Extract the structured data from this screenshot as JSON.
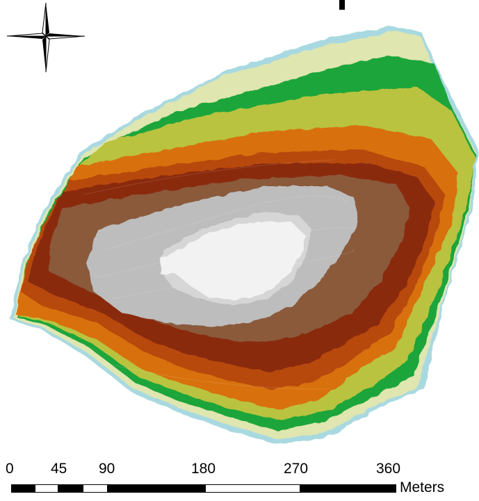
{
  "map": {
    "north_arrow_icon": "compass-rose-icon",
    "elevation_zone_colors": [
      "#a9d9e0",
      "#dfe6b0",
      "#ccd98a",
      "#2f9e3e",
      "#19a838",
      "#b8c43e",
      "#d9730f",
      "#c75a0a",
      "#8f2b0b",
      "#7a1f08",
      "#8c5a3a",
      "#b8b8b8",
      "#d4d4d4",
      "#f2f2f2"
    ],
    "outline_color": "#6a4a2a"
  },
  "scale_bar": {
    "ticks": [
      "0",
      "45",
      "90",
      "180",
      "270",
      "360"
    ],
    "unit": "Meters"
  }
}
